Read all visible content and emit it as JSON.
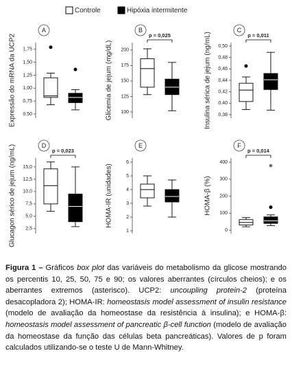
{
  "legend": [
    {
      "name": "Controle",
      "color": "#ffffff",
      "median_color": "#000000"
    },
    {
      "name": "Hipóxia intermitente",
      "color": "#000000",
      "median_color": "#ffffff"
    }
  ],
  "chart_data": [
    {
      "type": "box",
      "panel": "A",
      "ylabel": "Expressão do mRNA da UCP2",
      "ylim": [
        0.42,
        1.88
      ],
      "yticks": [
        {
          "value": 0.5,
          "label": "0,50"
        },
        {
          "value": 0.75,
          "label": "0,75"
        },
        {
          "value": 1.0,
          "label": "1,00"
        },
        {
          "value": 1.25,
          "label": "1,25"
        },
        {
          "value": 1.5,
          "label": "1,50"
        },
        {
          "value": 1.75,
          "label": "1,75"
        }
      ],
      "boxes": [
        {
          "whislo": 0.68,
          "q1": 0.82,
          "med": 0.85,
          "q3": 1.2,
          "whishi": 1.29,
          "fliers": [
            1.79
          ]
        },
        {
          "whislo": 0.58,
          "q1": 0.72,
          "med": 0.82,
          "q3": 0.9,
          "whishi": 0.97,
          "fliers": [
            1.36
          ]
        }
      ]
    },
    {
      "type": "box",
      "panel": "B",
      "ylabel": "Glicemia de jejum (mg/dL)",
      "annotation": "p = 0,025",
      "ylim": [
        90,
        212
      ],
      "yticks": [
        100,
        125,
        150,
        175,
        200
      ],
      "boxes": [
        {
          "whislo": 128,
          "q1": 140,
          "med": 170,
          "q3": 186,
          "whishi": 202
        },
        {
          "whislo": 102,
          "q1": 128,
          "med": 140,
          "q3": 153,
          "whishi": 180
        }
      ]
    },
    {
      "type": "box",
      "panel": "C",
      "ylabel": "Insulina sérica de jejum (ng/mL)",
      "annotation": "p = 0,011",
      "ylim": [
        0.374,
        0.506
      ],
      "yticks": [
        {
          "value": 0.38,
          "label": "0,38"
        },
        {
          "value": 0.4,
          "label": "0,40"
        },
        {
          "value": 0.42,
          "label": "0,42"
        },
        {
          "value": 0.44,
          "label": "0,44"
        },
        {
          "value": 0.46,
          "label": "0,46"
        },
        {
          "value": 0.48,
          "label": "0,48"
        },
        {
          "value": 0.5,
          "label": "0,50"
        }
      ],
      "boxes": [
        {
          "whislo": 0.389,
          "q1": 0.403,
          "med": 0.423,
          "q3": 0.435,
          "whishi": 0.446,
          "fliers": [
            0.465
          ]
        },
        {
          "whislo": 0.388,
          "q1": 0.424,
          "med": 0.441,
          "q3": 0.452,
          "whishi": 0.489
        }
      ]
    },
    {
      "type": "box",
      "panel": "D",
      "ylabel": "Glucagon sérico de jejum (ng/mL)",
      "annotation": "p = 0,023",
      "ylim": [
        1.5,
        16.8
      ],
      "yticks": [
        {
          "value": 2.5,
          "label": "2,5"
        },
        {
          "value": 5.0,
          "label": "5,0"
        },
        {
          "value": 7.5,
          "label": "7,5"
        },
        {
          "value": 10.0,
          "label": "10,0"
        },
        {
          "value": 12.5,
          "label": "12,5"
        },
        {
          "value": 15.0,
          "label": "15,0"
        }
      ],
      "boxes": [
        {
          "whislo": 6.0,
          "q1": 7.5,
          "med": 11.2,
          "q3": 14.6,
          "whishi": 16.0
        },
        {
          "whislo": 2.9,
          "q1": 3.9,
          "med": 7.0,
          "q3": 9.5,
          "whishi": 15.0
        }
      ]
    },
    {
      "type": "box",
      "panel": "E",
      "ylabel": "HOMA-IR (unidades)",
      "ylim": [
        0.8,
        6.3
      ],
      "yticks": [
        1,
        2,
        3,
        4,
        5,
        6
      ],
      "boxes": [
        {
          "whislo": 2.8,
          "q1": 3.4,
          "med": 4.0,
          "q3": 4.4,
          "whishi": 5.0
        },
        {
          "whislo": 2.0,
          "q1": 3.1,
          "med": 3.5,
          "q3": 4.0,
          "whishi": 4.7
        }
      ]
    },
    {
      "type": "box",
      "panel": "F",
      "ylabel": "HOMA-β (%)",
      "annotation": "p = 0,014",
      "ylim": [
        -20,
        425
      ],
      "yticks": [
        0,
        100,
        200,
        300,
        400
      ],
      "boxes": [
        {
          "whislo": 20,
          "q1": 31,
          "med": 45,
          "q3": 62,
          "whishi": 74
        },
        {
          "whislo": 27,
          "q1": 40,
          "med": 55,
          "q3": 78,
          "whishi": 90,
          "fliers": [
            135
          ],
          "extremes": [
            380
          ]
        }
      ]
    }
  ],
  "caption": {
    "label": "Figura 1 –",
    "segments": [
      {
        "text": " Gráficos ",
        "italic": false
      },
      {
        "text": "box plot",
        "italic": true
      },
      {
        "text": " das variáveis do metabolismo da glicose mostrando os percentis 10, 25, 50, 75 e 90; os valores aberrantes (círculos cheios); e os aberrantes extremos (asterisco). UCP2: ",
        "italic": false
      },
      {
        "text": "uncoupling protein-2",
        "italic": true
      },
      {
        "text": " (proteína desacopladora 2); HOMA-IR: ",
        "italic": false
      },
      {
        "text": "homeostasis model assessment of insulin resistance",
        "italic": true
      },
      {
        "text": " (modelo de avaliação da homeostase da resistência à insulina); e HOMA-β: ",
        "italic": false
      },
      {
        "text": "homeostasis model assessment of pancreatic β-cell function",
        "italic": true
      },
      {
        "text": " (modelo de avaliação da homeostase da função das células beta pancreáticas). Valores de p foram calculados utilizando-se o teste U de Mann-Whitney.",
        "italic": false
      }
    ]
  }
}
